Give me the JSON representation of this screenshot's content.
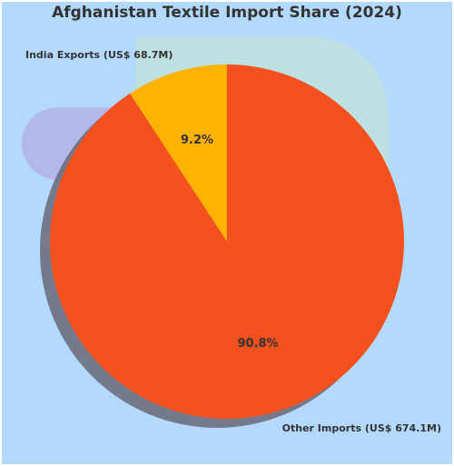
{
  "chart_data": {
    "type": "pie",
    "title": "Afghanistan Textile Import Share (2024)",
    "slices": [
      {
        "label": "India Exports (US$ 68.7M)",
        "value": 68.7,
        "percent_label": "9.2%",
        "color": "#FFB300"
      },
      {
        "label": "Other Imports (US$ 674.1M)",
        "value": 674.1,
        "percent_label": "90.8%",
        "color": "#F4511E"
      }
    ],
    "background_color": "#B3D9FF",
    "shadow_color": "#6E6E80",
    "legend": "none",
    "start_angle": "12 o'clock, counter-clockwise"
  }
}
